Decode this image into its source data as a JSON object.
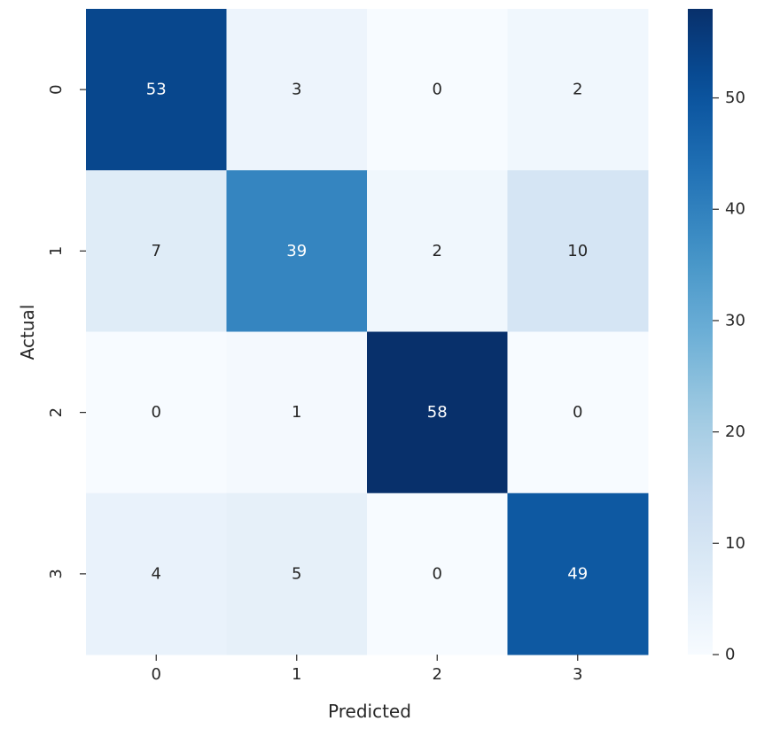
{
  "chart_data": {
    "type": "heatmap",
    "title": "",
    "xlabel": "Predicted",
    "ylabel": "Actual",
    "x_categories": [
      "0",
      "1",
      "2",
      "3"
    ],
    "y_categories": [
      "0",
      "1",
      "2",
      "3"
    ],
    "matrix": [
      [
        53,
        3,
        0,
        2
      ],
      [
        7,
        39,
        2,
        10
      ],
      [
        0,
        1,
        58,
        0
      ],
      [
        4,
        5,
        0,
        49
      ]
    ],
    "colormap": "Blues",
    "color_range": [
      0,
      58
    ],
    "colorbar": {
      "ticks": [
        0,
        10,
        20,
        30,
        40,
        50
      ],
      "tick_labels": [
        "0",
        "10",
        "20",
        "30",
        "40",
        "50"
      ]
    },
    "annotations": true,
    "grid": false
  }
}
